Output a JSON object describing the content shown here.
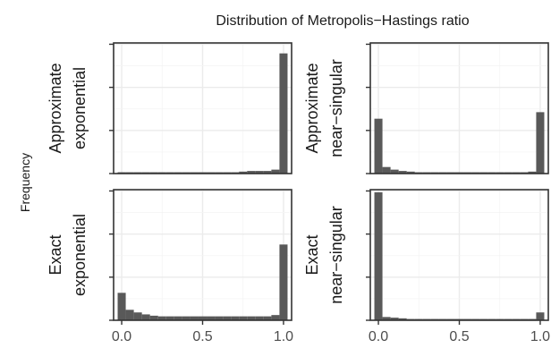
{
  "chart_data": {
    "type": "bar",
    "title": "Distribution of Metropolis−Hastings ratio",
    "ylabel": "Frequency",
    "xlabel": "",
    "xlim": [
      -0.05,
      1.05
    ],
    "x_ticks": [
      "0.0",
      "0.5",
      "1.0"
    ],
    "x_tick_values": [
      0,
      0.5,
      1
    ],
    "y_ticks_labeled": false,
    "grid": true,
    "bin_edges": [
      -0.025,
      0.025,
      0.075,
      0.125,
      0.175,
      0.225,
      0.275,
      0.325,
      0.375,
      0.425,
      0.475,
      0.525,
      0.575,
      0.625,
      0.675,
      0.725,
      0.775,
      0.825,
      0.875,
      0.925,
      0.975,
      1.025
    ],
    "panels": [
      {
        "id": "approx-exponential",
        "facet_label": [
          "Approximate",
          "exponential"
        ],
        "row": 0,
        "col": 0,
        "ylim": [
          0,
          100
        ],
        "y_tick_values": [
          0,
          33,
          66,
          99
        ],
        "values": [
          1,
          1,
          1,
          1,
          1,
          1,
          1,
          1,
          1,
          1,
          1,
          1,
          1,
          1,
          1,
          1.5,
          2,
          2,
          2,
          3,
          92
        ]
      },
      {
        "id": "approx-near-singular",
        "facet_label": [
          "Approximate",
          "near−singular"
        ],
        "row": 0,
        "col": 1,
        "ylim": [
          0,
          100
        ],
        "y_tick_values": [
          0,
          33,
          66,
          99
        ],
        "values": [
          42,
          5,
          3,
          2,
          1.5,
          1,
          1,
          1,
          1,
          1,
          1,
          1,
          1,
          1,
          1,
          1,
          1,
          1,
          1,
          1.5,
          47
        ]
      },
      {
        "id": "exact-exponential",
        "facet_label": [
          "Exact",
          "exponential"
        ],
        "row": 1,
        "col": 0,
        "ylim": [
          0,
          100
        ],
        "y_tick_values": [
          0,
          33,
          66,
          99
        ],
        "values": [
          21,
          8,
          6,
          4.5,
          3.5,
          3,
          3,
          3,
          3,
          3,
          3,
          3,
          3,
          3,
          3,
          3,
          3,
          3,
          3,
          4,
          58
        ]
      },
      {
        "id": "exact-near-singular",
        "facet_label": [
          "Exact",
          "near−singular"
        ],
        "row": 1,
        "col": 1,
        "ylim": [
          0,
          100
        ],
        "y_tick_values": [
          0,
          33,
          66,
          99
        ],
        "values": [
          98,
          2.5,
          2,
          1.5,
          1,
          1,
          1,
          1,
          1,
          1,
          1,
          1,
          1,
          1,
          1,
          1,
          1,
          1,
          1,
          1,
          6
        ]
      }
    ],
    "bar_color": "#595959"
  }
}
